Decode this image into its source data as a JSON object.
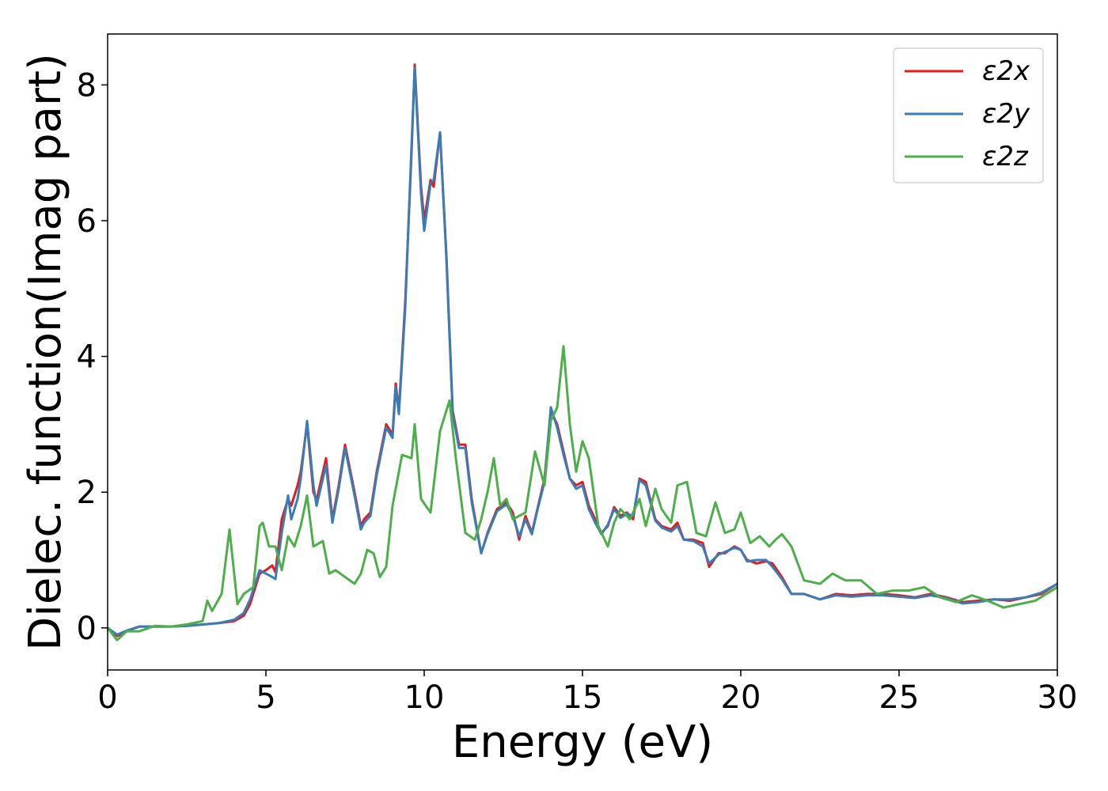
{
  "chart_data": {
    "type": "line",
    "title": "",
    "xlabel": "Energy (eV)",
    "ylabel": "Dielec. function(Imag part)",
    "xlim": [
      0,
      30
    ],
    "ylim": [
      -0.62,
      8.75
    ],
    "xticks": [
      0,
      5,
      10,
      15,
      20,
      25,
      30
    ],
    "yticks": [
      0,
      2,
      4,
      6,
      8
    ],
    "grid": false,
    "legend_position": "top-right",
    "series": [
      {
        "name": "ε2x",
        "color": "#e41a1c",
        "x": [
          0,
          0.3,
          0.6,
          1,
          1.5,
          2,
          2.5,
          3,
          3.5,
          4,
          4.3,
          4.5,
          4.8,
          5,
          5.2,
          5.3,
          5.5,
          5.7,
          5.8,
          6,
          6.1,
          6.3,
          6.5,
          6.6,
          6.9,
          7.1,
          7.3,
          7.5,
          7.8,
          8,
          8.1,
          8.3,
          8.5,
          8.8,
          9,
          9.1,
          9.2,
          9.4,
          9.6,
          9.7,
          9.9,
          10,
          10.2,
          10.3,
          10.5,
          10.7,
          10.9,
          11.1,
          11.3,
          11.5,
          11.8,
          12,
          12.3,
          12.6,
          12.8,
          13,
          13.2,
          13.4,
          13.6,
          13.8,
          14,
          14.2,
          14.4,
          14.6,
          14.8,
          15,
          15.2,
          15.4,
          15.6,
          15.8,
          16,
          16.2,
          16.4,
          16.6,
          16.8,
          17,
          17.3,
          17.5,
          17.8,
          18,
          18.2,
          18.5,
          18.8,
          19,
          19.3,
          19.5,
          19.8,
          20,
          20.2,
          20.5,
          20.8,
          21,
          21.3,
          21.6,
          22,
          22.5,
          23,
          23.5,
          24,
          24.5,
          25,
          25.5,
          26,
          26.5,
          27,
          27.5,
          28,
          28.5,
          29,
          29.5,
          30
        ],
        "y": [
          0,
          -0.12,
          -0.05,
          0.02,
          0.02,
          0.02,
          0.03,
          0.05,
          0.07,
          0.1,
          0.18,
          0.35,
          0.8,
          0.85,
          0.92,
          0.82,
          1.6,
          1.9,
          1.8,
          2.1,
          2.3,
          3.0,
          2.0,
          1.88,
          2.5,
          1.6,
          2.1,
          2.7,
          2.0,
          1.5,
          1.6,
          1.7,
          2.3,
          3.0,
          2.85,
          3.6,
          3.2,
          4.8,
          7.0,
          8.3,
          6.5,
          6.0,
          6.6,
          6.5,
          7.3,
          5.5,
          3.2,
          2.7,
          2.7,
          1.9,
          1.1,
          1.4,
          1.75,
          1.85,
          1.7,
          1.3,
          1.65,
          1.4,
          1.8,
          2.2,
          3.2,
          3.0,
          2.6,
          2.2,
          2.1,
          2.15,
          1.8,
          1.6,
          1.4,
          1.5,
          1.78,
          1.65,
          1.7,
          1.6,
          2.2,
          2.15,
          1.6,
          1.5,
          1.45,
          1.55,
          1.3,
          1.3,
          1.25,
          0.9,
          1.1,
          1.1,
          1.2,
          1.15,
          1.0,
          0.95,
          0.98,
          0.95,
          0.75,
          0.5,
          0.5,
          0.42,
          0.5,
          0.48,
          0.5,
          0.5,
          0.48,
          0.45,
          0.5,
          0.45,
          0.38,
          0.4,
          0.42,
          0.4,
          0.45,
          0.5,
          0.65
        ]
      },
      {
        "name": "ε2y",
        "color": "#377eb8",
        "x": [
          0,
          0.3,
          0.6,
          1,
          1.5,
          2,
          2.5,
          3,
          3.5,
          4,
          4.3,
          4.5,
          4.8,
          5,
          5.2,
          5.3,
          5.5,
          5.7,
          5.8,
          6,
          6.1,
          6.3,
          6.5,
          6.6,
          6.9,
          7.1,
          7.3,
          7.5,
          7.8,
          8,
          8.1,
          8.3,
          8.5,
          8.8,
          9,
          9.1,
          9.2,
          9.4,
          9.6,
          9.7,
          9.9,
          10,
          10.2,
          10.3,
          10.5,
          10.7,
          10.9,
          11.1,
          11.3,
          11.5,
          11.8,
          12,
          12.3,
          12.6,
          12.8,
          13,
          13.2,
          13.4,
          13.6,
          13.8,
          14,
          14.2,
          14.4,
          14.6,
          14.8,
          15,
          15.2,
          15.4,
          15.6,
          15.8,
          16,
          16.2,
          16.4,
          16.6,
          16.8,
          17,
          17.3,
          17.5,
          17.8,
          18,
          18.2,
          18.5,
          18.8,
          19,
          19.3,
          19.5,
          19.8,
          20,
          20.2,
          20.5,
          20.8,
          21,
          21.3,
          21.6,
          22,
          22.5,
          23,
          23.5,
          24,
          24.5,
          25,
          25.5,
          26,
          26.5,
          27,
          27.5,
          28,
          28.5,
          29,
          29.5,
          30
        ],
        "y": [
          0,
          -0.1,
          -0.04,
          0.02,
          0.02,
          0.02,
          0.03,
          0.05,
          0.07,
          0.12,
          0.22,
          0.42,
          0.85,
          0.8,
          0.75,
          0.72,
          1.4,
          1.95,
          1.6,
          1.9,
          2.2,
          3.05,
          2.1,
          1.8,
          2.4,
          1.55,
          2.05,
          2.65,
          1.95,
          1.45,
          1.55,
          1.65,
          2.25,
          2.95,
          2.8,
          3.55,
          3.15,
          4.7,
          7.1,
          8.25,
          6.4,
          5.85,
          6.55,
          6.6,
          7.3,
          5.45,
          3.15,
          2.65,
          2.65,
          1.85,
          1.1,
          1.38,
          1.72,
          1.82,
          1.65,
          1.35,
          1.6,
          1.38,
          1.78,
          2.15,
          3.25,
          2.95,
          2.55,
          2.2,
          2.05,
          2.1,
          1.75,
          1.55,
          1.38,
          1.52,
          1.75,
          1.62,
          1.68,
          1.65,
          2.18,
          2.1,
          1.58,
          1.48,
          1.42,
          1.5,
          1.3,
          1.28,
          1.2,
          0.95,
          1.08,
          1.12,
          1.18,
          1.15,
          0.98,
          1.0,
          1.0,
          0.9,
          0.72,
          0.5,
          0.5,
          0.42,
          0.48,
          0.46,
          0.48,
          0.48,
          0.46,
          0.44,
          0.48,
          0.44,
          0.36,
          0.38,
          0.42,
          0.42,
          0.45,
          0.52,
          0.65
        ]
      },
      {
        "name": "ε2z",
        "color": "#4daf4a",
        "x": [
          0,
          0.3,
          0.6,
          1,
          1.5,
          2,
          2.5,
          3,
          3.15,
          3.3,
          3.6,
          3.85,
          4.1,
          4.3,
          4.6,
          4.8,
          4.9,
          5.1,
          5.3,
          5.5,
          5.7,
          5.9,
          6.1,
          6.3,
          6.5,
          6.8,
          7,
          7.2,
          7.5,
          7.8,
          8,
          8.2,
          8.4,
          8.6,
          8.8,
          9,
          9.3,
          9.6,
          9.7,
          9.9,
          10.2,
          10.5,
          10.8,
          11,
          11.3,
          11.6,
          11.8,
          12,
          12.2,
          12.4,
          12.6,
          12.8,
          13,
          13.2,
          13.5,
          13.8,
          14,
          14.2,
          14.4,
          14.6,
          14.8,
          15,
          15.2,
          15.5,
          15.8,
          16,
          16.2,
          16.5,
          16.8,
          17,
          17.3,
          17.5,
          17.8,
          18,
          18.3,
          18.6,
          18.9,
          19.2,
          19.5,
          19.8,
          20,
          20.3,
          20.6,
          20.9,
          21.1,
          21.3,
          21.6,
          22,
          22.5,
          22.9,
          23.3,
          23.8,
          24.3,
          24.8,
          25.3,
          25.8,
          26.3,
          26.8,
          27.3,
          27.8,
          28.3,
          28.8,
          29.3,
          30
        ],
        "y": [
          0,
          -0.18,
          -0.05,
          -0.05,
          0.03,
          0.02,
          0.05,
          0.1,
          0.4,
          0.25,
          0.5,
          1.45,
          0.35,
          0.5,
          0.6,
          1.5,
          1.55,
          1.2,
          1.2,
          0.85,
          1.35,
          1.2,
          1.5,
          1.95,
          1.2,
          1.28,
          0.8,
          0.85,
          0.75,
          0.65,
          0.8,
          1.15,
          1.1,
          0.75,
          0.9,
          1.8,
          2.55,
          2.5,
          3.0,
          1.9,
          1.7,
          2.9,
          3.35,
          2.5,
          1.4,
          1.3,
          1.6,
          2.0,
          2.5,
          1.8,
          1.9,
          1.6,
          1.65,
          1.7,
          2.6,
          2.1,
          3.05,
          3.25,
          4.15,
          3.0,
          2.3,
          2.75,
          2.5,
          1.5,
          1.2,
          1.55,
          1.75,
          1.6,
          1.9,
          1.5,
          2.05,
          1.75,
          1.55,
          2.1,
          2.15,
          1.4,
          1.35,
          1.85,
          1.4,
          1.45,
          1.7,
          1.25,
          1.35,
          1.2,
          1.3,
          1.38,
          1.2,
          0.7,
          0.65,
          0.8,
          0.7,
          0.7,
          0.5,
          0.55,
          0.55,
          0.6,
          0.45,
          0.38,
          0.48,
          0.4,
          0.3,
          0.35,
          0.4,
          0.6
        ]
      }
    ]
  }
}
